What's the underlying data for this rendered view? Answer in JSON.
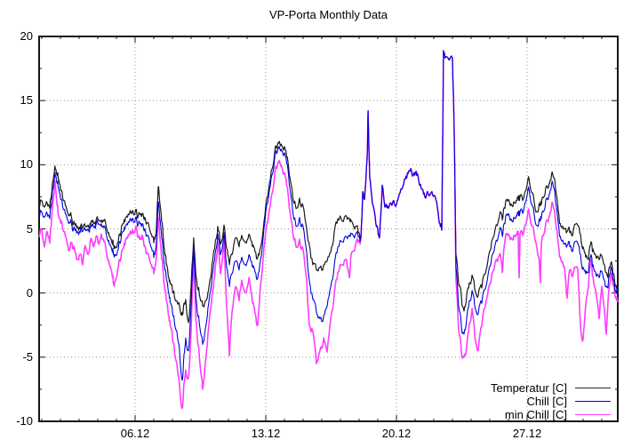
{
  "title": "VP-Porta Monthly Data",
  "chart_data": {
    "type": "line",
    "title": "VP-Porta Monthly Data",
    "x_axis": {
      "tick_labels": [
        "06.12",
        "13.12",
        "20.12",
        "27.12"
      ],
      "tick_days": [
        6,
        13,
        20,
        27
      ],
      "minor_tick_step_days": 1,
      "range_days": [
        0.857,
        31.857
      ]
    },
    "y_axis": {
      "ticks": [
        -10,
        -5,
        0,
        5,
        10,
        15,
        20
      ],
      "minor_tick_step": 2.5,
      "range": [
        -10,
        20
      ]
    },
    "grid": {
      "show": true,
      "style": "dotted",
      "color": "#999999"
    },
    "legend": {
      "position": "bottom-right",
      "entries": [
        {
          "label": "Temperatur [C]",
          "color": "#2a2a2a"
        },
        {
          "label": "Chill [C]",
          "color": "#0000dd"
        },
        {
          "label": "min Chill [C]",
          "color": "#ff3cff"
        }
      ]
    },
    "x_days": [
      0.86,
      1.0,
      1.14,
      1.29,
      1.43,
      1.52,
      1.62,
      1.71,
      1.81,
      1.9,
      2.05,
      2.19,
      2.33,
      2.48,
      2.62,
      2.76,
      2.9,
      3.05,
      3.19,
      3.33,
      3.48,
      3.62,
      3.76,
      3.9,
      4.05,
      4.19,
      4.33,
      4.48,
      4.62,
      4.76,
      4.86,
      4.95,
      5.1,
      5.24,
      5.38,
      5.52,
      5.67,
      5.81,
      5.95,
      6.1,
      6.24,
      6.38,
      6.52,
      6.67,
      6.81,
      6.95,
      7.05,
      7.14,
      7.24,
      7.33,
      7.43,
      7.52,
      7.62,
      7.71,
      7.81,
      7.9,
      8.0,
      8.1,
      8.24,
      8.38,
      8.52,
      8.62,
      8.71,
      8.86,
      9.0,
      9.14,
      9.24,
      9.33,
      9.48,
      9.62,
      9.76,
      9.9,
      10.05,
      10.19,
      10.33,
      10.43,
      10.57,
      10.76,
      10.9,
      11.05,
      11.19,
      11.38,
      11.57,
      11.71,
      11.9,
      12.1,
      12.29,
      12.43,
      12.57,
      12.71,
      12.9,
      13.1,
      13.29,
      13.48,
      13.62,
      13.76,
      13.9,
      14.05,
      14.19,
      14.33,
      14.48,
      14.62,
      14.81,
      15.0,
      15.19,
      15.33,
      15.52,
      15.71,
      15.9,
      16.1,
      16.29,
      16.48,
      16.67,
      16.86,
      17.1,
      17.33,
      17.48,
      17.57,
      17.81,
      18.0,
      18.1,
      18.19,
      18.29,
      18.43,
      18.48,
      18.57,
      18.71,
      18.86,
      19.0,
      19.1,
      19.24,
      19.38,
      19.52,
      19.71,
      19.9,
      20.1,
      20.29,
      20.48,
      20.62,
      20.76,
      20.9,
      21.05,
      21.19,
      21.38,
      21.52,
      21.71,
      21.9,
      22.05,
      22.19,
      22.33,
      22.43,
      22.52,
      22.62,
      22.9,
      23.0,
      23.1,
      23.19,
      23.33,
      23.48,
      23.62,
      23.76,
      23.9,
      24.05,
      24.19,
      24.38,
      24.57,
      24.81,
      25.05,
      25.29,
      25.52,
      25.67,
      25.81,
      26.0,
      26.19,
      26.38,
      26.52,
      26.57,
      26.62,
      26.76,
      27.0,
      27.1,
      27.29,
      27.48,
      27.62,
      27.71,
      27.76,
      27.9,
      28.1,
      28.24,
      28.38,
      28.52,
      28.67,
      28.81,
      29.0,
      29.14,
      29.29,
      29.48,
      29.71,
      29.86,
      30.0,
      30.14,
      30.29,
      30.43,
      30.57,
      30.71,
      30.86,
      31.0,
      31.14,
      31.24,
      31.33,
      31.48,
      31.62,
      31.76,
      31.86
    ],
    "series": [
      {
        "name": "Temperatur [C]",
        "color": "#1a1a1a",
        "values": [
          6.6,
          7.2,
          6.7,
          7.0,
          6.6,
          7.6,
          8.8,
          9.9,
          9.2,
          8.9,
          8.0,
          7.2,
          6.6,
          6.1,
          5.7,
          5.4,
          5.2,
          5.0,
          5.1,
          5.2,
          5.3,
          5.4,
          5.5,
          5.6,
          5.7,
          5.7,
          5.6,
          5.0,
          4.4,
          3.9,
          3.7,
          3.5,
          4.0,
          4.7,
          5.4,
          5.9,
          6.1,
          6.2,
          6.1,
          6.1,
          6.2,
          6.2,
          5.9,
          5.5,
          4.8,
          4.4,
          4.2,
          5.0,
          8.3,
          7.0,
          5.5,
          4.2,
          3.0,
          2.1,
          1.2,
          0.7,
          0.2,
          -0.2,
          -0.6,
          -1.0,
          -1.5,
          -0.8,
          -0.5,
          -2.3,
          0.5,
          4.3,
          1.8,
          0.5,
          -0.4,
          -1.0,
          -0.6,
          0.0,
          1.2,
          3.0,
          4.2,
          5.2,
          3.8,
          5.3,
          3.5,
          2.2,
          3.0,
          4.3,
          3.6,
          4.5,
          4.0,
          4.6,
          3.6,
          3.2,
          2.8,
          3.5,
          5.5,
          7.5,
          9.5,
          11.0,
          11.4,
          11.6,
          11.4,
          11.1,
          10.2,
          8.7,
          7.2,
          6.6,
          7.4,
          6.8,
          5.0,
          3.8,
          2.2,
          1.8,
          2.0,
          2.2,
          2.5,
          3.2,
          4.8,
          5.8,
          5.6,
          6.0,
          5.8,
          5.6,
          5.2,
          4.7,
          4.5,
          7.9,
          7.3,
          10.5,
          14.2,
          9.0,
          7.0,
          5.9,
          5.0,
          4.4,
          8.4,
          6.7,
          6.8,
          7.0,
          6.9,
          7.4,
          8.1,
          8.9,
          9.3,
          9.7,
          9.2,
          9.5,
          8.8,
          8.1,
          7.5,
          7.7,
          7.9,
          7.6,
          6.7,
          5.4,
          4.9,
          18.9,
          18.4,
          18.4,
          18.3,
          12.0,
          3.0,
          0.8,
          -0.3,
          -1.4,
          -0.2,
          0.8,
          1.4,
          0.3,
          -0.2,
          0.4,
          1.8,
          3.4,
          5.0,
          6.0,
          5.7,
          6.6,
          7.3,
          6.8,
          7.0,
          7.5,
          7.6,
          7.5,
          7.2,
          8.4,
          8.9,
          7.8,
          6.3,
          6.6,
          6.8,
          6.9,
          7.5,
          8.2,
          8.8,
          9.2,
          8.2,
          6.4,
          5.2,
          5.0,
          4.8,
          4.7,
          4.9,
          5.3,
          4.6,
          3.6,
          2.8,
          2.6,
          4.0,
          3.2,
          2.7,
          2.6,
          2.9,
          2.2,
          1.6,
          1.2,
          2.3,
          1.5,
          0.6,
          0.3
        ]
      },
      {
        "name": "Chill [C]",
        "color": "#0000dd",
        "values": [
          5.9,
          6.3,
          5.9,
          6.2,
          5.8,
          7.0,
          8.2,
          9.4,
          8.6,
          8.2,
          7.3,
          6.5,
          6.0,
          5.5,
          5.2,
          5.0,
          4.8,
          4.7,
          4.8,
          4.9,
          5.0,
          5.1,
          5.2,
          5.3,
          5.4,
          5.4,
          5.1,
          4.4,
          3.8,
          3.3,
          3.0,
          2.9,
          3.4,
          4.1,
          4.8,
          5.3,
          5.5,
          5.6,
          5.5,
          5.5,
          5.5,
          5.4,
          5.0,
          4.5,
          3.8,
          3.3,
          3.0,
          4.0,
          7.1,
          5.8,
          4.2,
          3.0,
          1.8,
          0.9,
          0.0,
          -0.8,
          -1.5,
          -2.2,
          -3.0,
          -4.5,
          -6.8,
          -4.8,
          -3.5,
          -4.5,
          -1.0,
          3.7,
          0.2,
          -1.5,
          -2.8,
          -4.0,
          -2.8,
          -1.2,
          0.2,
          2.0,
          3.4,
          4.6,
          3.0,
          4.7,
          2.0,
          0.5,
          1.5,
          2.5,
          1.8,
          2.8,
          2.2,
          3.0,
          2.0,
          1.6,
          1.2,
          2.5,
          5.0,
          7.0,
          9.0,
          10.6,
          11.0,
          11.2,
          11.0,
          10.6,
          9.6,
          7.8,
          6.0,
          5.2,
          5.9,
          5.2,
          3.2,
          1.0,
          -0.5,
          -1.5,
          -2.0,
          -1.8,
          -1.0,
          0.5,
          2.2,
          3.6,
          4.0,
          4.4,
          4.5,
          4.6,
          4.6,
          4.4,
          4.4,
          7.8,
          7.3,
          10.5,
          14.2,
          9.0,
          7.0,
          5.9,
          5.0,
          4.4,
          8.4,
          6.7,
          6.8,
          7.0,
          6.9,
          7.4,
          8.1,
          8.9,
          9.3,
          9.7,
          9.2,
          9.5,
          8.8,
          8.1,
          7.5,
          7.7,
          7.9,
          7.6,
          6.7,
          5.4,
          4.9,
          18.9,
          18.4,
          18.4,
          18.3,
          12.0,
          2.0,
          -1.0,
          -2.6,
          -3.2,
          -2.0,
          -0.6,
          0.2,
          -1.0,
          -1.6,
          -0.8,
          0.6,
          2.2,
          3.8,
          4.8,
          4.4,
          5.4,
          6.2,
          5.6,
          5.8,
          6.3,
          6.4,
          6.3,
          6.2,
          7.6,
          8.1,
          6.8,
          5.3,
          5.4,
          5.6,
          5.8,
          6.4,
          7.3,
          8.0,
          8.5,
          7.2,
          5.4,
          4.2,
          3.8,
          3.7,
          3.6,
          3.6,
          3.9,
          3.0,
          2.0,
          1.5,
          1.6,
          3.0,
          1.9,
          1.3,
          1.2,
          1.7,
          1.0,
          0.5,
          0.4,
          1.9,
          1.0,
          0.2,
          0.0
        ]
      },
      {
        "name": "min Chill [C]",
        "color": "#ff3cff",
        "values": [
          4.4,
          4.9,
          3.6,
          4.8,
          3.9,
          5.6,
          7.2,
          8.7,
          7.0,
          6.0,
          5.6,
          4.8,
          4.2,
          3.3,
          3.9,
          3.4,
          2.6,
          3.0,
          2.2,
          3.7,
          3.0,
          4.2,
          3.6,
          4.4,
          3.8,
          4.6,
          4.0,
          3.0,
          2.2,
          1.5,
          0.6,
          1.0,
          2.0,
          2.7,
          3.5,
          4.2,
          4.5,
          4.6,
          4.7,
          4.8,
          4.2,
          4.5,
          3.7,
          3.1,
          2.4,
          2.0,
          1.8,
          2.9,
          5.9,
          4.3,
          2.6,
          1.4,
          0.2,
          -0.8,
          -1.8,
          -2.6,
          -3.5,
          -4.4,
          -5.5,
          -7.2,
          -9.0,
          -7.0,
          -6.0,
          -6.6,
          -3.0,
          3.0,
          -1.5,
          -3.5,
          -5.6,
          -7.5,
          -5.4,
          -3.2,
          -1.2,
          0.5,
          2.4,
          4.0,
          1.5,
          4.2,
          -1.0,
          -4.9,
          -1.5,
          0.5,
          -0.6,
          1.0,
          0.0,
          1.2,
          -0.8,
          -1.6,
          -2.5,
          0.5,
          3.5,
          5.5,
          7.5,
          9.3,
          9.9,
          10.1,
          9.6,
          9.0,
          7.8,
          6.0,
          4.4,
          3.6,
          4.2,
          3.4,
          1.0,
          -2.5,
          -3.0,
          -5.5,
          -4.5,
          -3.5,
          -4.6,
          -2.0,
          0.0,
          1.6,
          2.2,
          2.6,
          1.2,
          3.0,
          3.8,
          4.1,
          4.3,
          7.6,
          7.3,
          10.5,
          14.2,
          9.0,
          7.0,
          5.9,
          5.0,
          4.4,
          8.4,
          6.7,
          6.8,
          7.0,
          6.9,
          7.4,
          8.1,
          8.9,
          9.3,
          9.7,
          9.2,
          9.5,
          8.8,
          8.1,
          7.5,
          7.7,
          7.9,
          7.6,
          6.7,
          5.4,
          4.9,
          18.9,
          18.4,
          18.4,
          18.3,
          12.0,
          1.0,
          -2.8,
          -4.6,
          -5.0,
          -4.2,
          -2.4,
          -1.2,
          -3.3,
          -4.5,
          -2.6,
          -0.6,
          0.8,
          2.4,
          3.0,
          1.6,
          4.0,
          4.6,
          4.2,
          4.4,
          4.8,
          1.2,
          4.6,
          4.5,
          5.8,
          6.4,
          5.2,
          3.9,
          2.8,
          0.8,
          3.8,
          4.6,
          5.6,
          6.3,
          6.9,
          5.6,
          3.8,
          2.6,
          2.0,
          -0.4,
          1.8,
          1.6,
          1.9,
          -2.6,
          -3.6,
          -1.0,
          0.6,
          2.6,
          0.8,
          -0.2,
          -2.0,
          0.5,
          -1.2,
          -3.2,
          -0.8,
          1.4,
          0.6,
          -0.3,
          -0.6
        ]
      }
    ]
  }
}
